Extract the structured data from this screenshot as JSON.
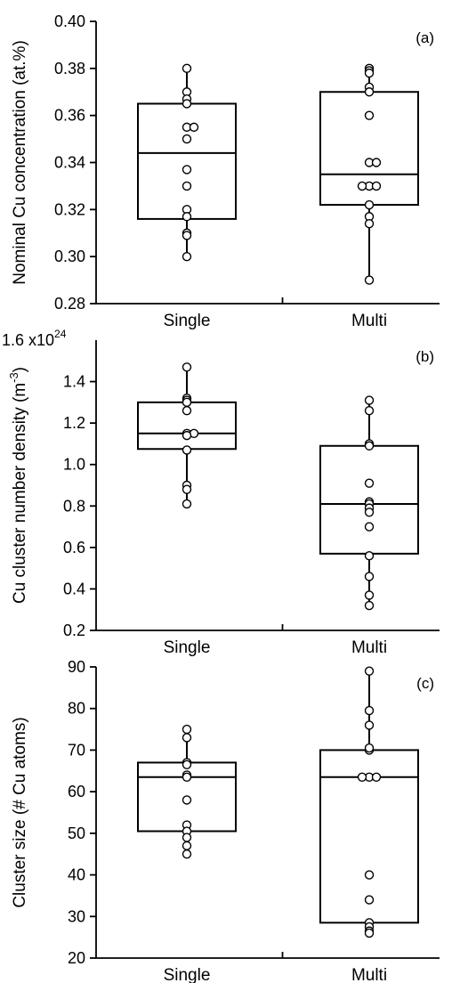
{
  "chart_data": [
    {
      "type": "box",
      "panel_label": "(a)",
      "ylabel": "Nominal Cu concentration (at.%)",
      "ylim": [
        0.28,
        0.4
      ],
      "yticks": [
        0.28,
        0.3,
        0.32,
        0.34,
        0.36,
        0.38,
        0.4
      ],
      "tick_decimals": 2,
      "categories": [
        "Single",
        "Multi"
      ],
      "boxes": [
        {
          "category": "Single",
          "q1": 0.316,
          "median": 0.344,
          "q3": 0.365,
          "min": 0.3,
          "max": 0.38,
          "points": [
            0.38,
            0.37,
            0.367,
            0.365,
            0.355,
            0.355,
            0.35,
            0.337,
            0.33,
            0.32,
            0.317,
            0.31,
            0.309,
            0.3
          ]
        },
        {
          "category": "Multi",
          "q1": 0.322,
          "median": 0.335,
          "q3": 0.37,
          "min": 0.29,
          "max": 0.38,
          "points": [
            0.38,
            0.379,
            0.378,
            0.372,
            0.37,
            0.36,
            0.34,
            0.34,
            0.33,
            0.33,
            0.33,
            0.322,
            0.317,
            0.314,
            0.29
          ]
        }
      ]
    },
    {
      "type": "box",
      "panel_label": "(b)",
      "ylabel": "Cu cluster number density (m",
      "ylabel_sup": "-3",
      "ylabel_end": ")",
      "scale_prefix": "1.6 x10",
      "scale_exp": "24",
      "ylim": [
        0.2,
        1.6
      ],
      "yticks": [
        0.2,
        0.4,
        0.6,
        0.8,
        1.0,
        1.2,
        1.4
      ],
      "tick_decimals": 1,
      "categories": [
        "Single",
        "Multi"
      ],
      "boxes": [
        {
          "category": "Single",
          "q1": 1.075,
          "median": 1.15,
          "q3": 1.3,
          "min": 0.81,
          "max": 1.47,
          "points": [
            1.47,
            1.32,
            1.31,
            1.3,
            1.26,
            1.15,
            1.15,
            1.14,
            1.07,
            0.9,
            0.88,
            0.81
          ]
        },
        {
          "category": "Multi",
          "q1": 0.57,
          "median": 0.81,
          "q3": 1.09,
          "min": 0.32,
          "max": 1.31,
          "points": [
            1.31,
            1.26,
            1.1,
            1.09,
            0.91,
            0.82,
            0.81,
            0.79,
            0.77,
            0.7,
            0.56,
            0.46,
            0.37,
            0.32
          ]
        }
      ]
    },
    {
      "type": "box",
      "panel_label": "(c)",
      "ylabel": "Cluster size (# Cu atoms)",
      "ylim": [
        20,
        90
      ],
      "yticks": [
        20,
        30,
        40,
        50,
        60,
        70,
        80,
        90
      ],
      "tick_decimals": 0,
      "categories": [
        "Single",
        "Multi"
      ],
      "boxes": [
        {
          "category": "Single",
          "q1": 50.5,
          "median": 63.5,
          "q3": 67.0,
          "min": 45.0,
          "max": 75.0,
          "points": [
            75.0,
            73.0,
            67.0,
            66.5,
            64.0,
            63.5,
            58.0,
            52.0,
            50.5,
            49.0,
            47.0,
            45.0
          ]
        },
        {
          "category": "Multi",
          "q1": 28.5,
          "median": 63.5,
          "q3": 70.0,
          "min": 26.0,
          "max": 89.0,
          "points": [
            89.0,
            79.5,
            76.0,
            70.0,
            70.5,
            63.5,
            63.5,
            63.5,
            40.0,
            34.0,
            28.5,
            27.5,
            26.5,
            26.0
          ]
        }
      ]
    }
  ]
}
